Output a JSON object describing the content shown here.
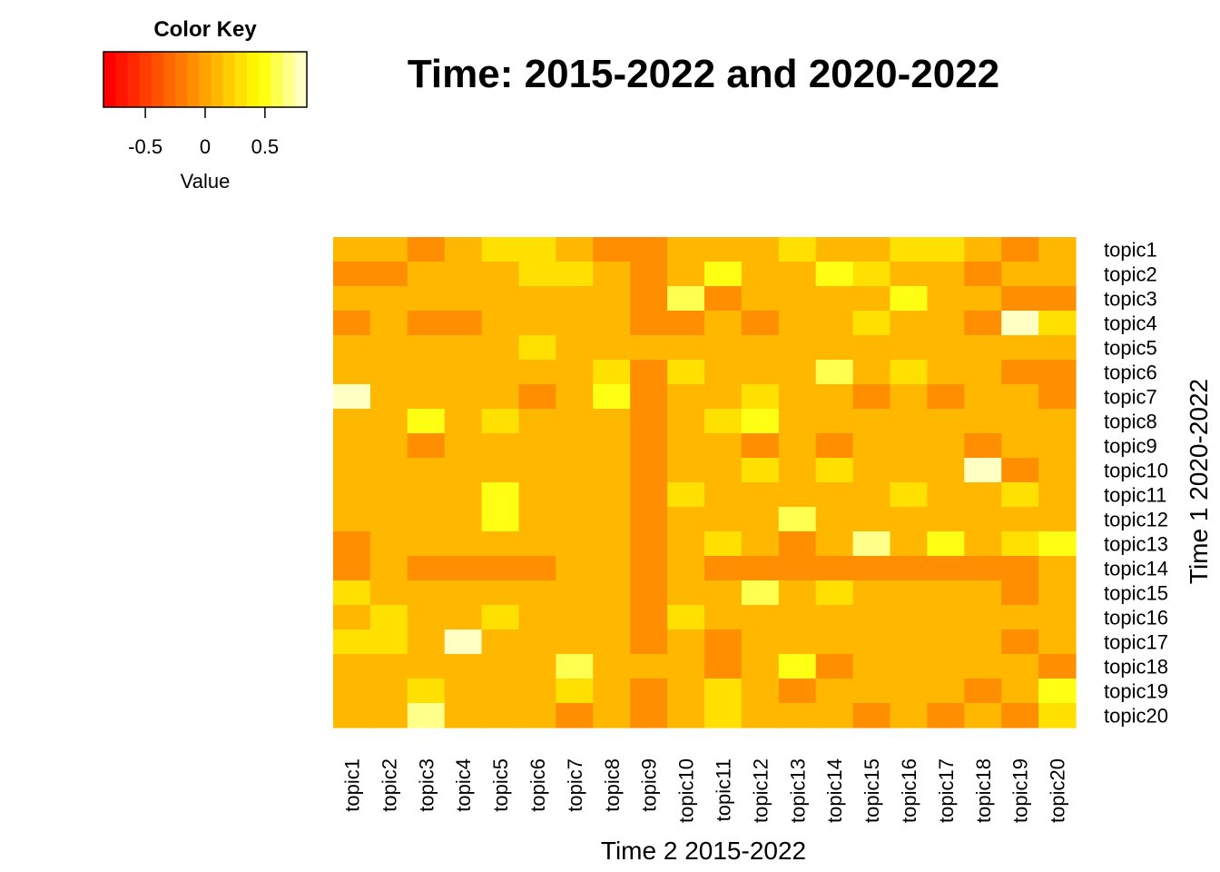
{
  "chart_data": {
    "type": "heatmap",
    "title": "Time: 2015-2022 and 2020-2022",
    "xlabel": "Time 2 2015-2022",
    "ylabel": "Time 1 2020-2022",
    "x_categories": [
      "topic1",
      "topic2",
      "topic3",
      "topic4",
      "topic5",
      "topic6",
      "topic7",
      "topic8",
      "topic9",
      "topic10",
      "topic11",
      "topic12",
      "topic13",
      "topic14",
      "topic15",
      "topic16",
      "topic17",
      "topic18",
      "topic19",
      "topic20"
    ],
    "y_categories": [
      "topic1",
      "topic2",
      "topic3",
      "topic4",
      "topic5",
      "topic6",
      "topic7",
      "topic8",
      "topic9",
      "topic10",
      "topic11",
      "topic12",
      "topic13",
      "topic14",
      "topic15",
      "topic16",
      "topic17",
      "topic18",
      "topic19",
      "topic20"
    ],
    "values": [
      [
        0.1,
        0.1,
        -0.1,
        0.1,
        0.25,
        0.25,
        0.1,
        -0.1,
        -0.1,
        0.1,
        0.1,
        0.1,
        0.25,
        0.1,
        0.1,
        0.3,
        0.3,
        0.1,
        -0.1,
        0.1
      ],
      [
        -0.1,
        -0.1,
        0.1,
        0.1,
        0.1,
        0.25,
        0.25,
        0.1,
        -0.1,
        0.1,
        0.45,
        0.1,
        0.1,
        0.45,
        0.25,
        0.1,
        0.1,
        -0.1,
        0.1,
        0.1
      ],
      [
        0.1,
        0.1,
        0.1,
        0.1,
        0.1,
        0.1,
        0.1,
        0.1,
        -0.1,
        0.6,
        -0.1,
        0.1,
        0.1,
        0.1,
        0.1,
        0.45,
        0.1,
        0.1,
        -0.1,
        -0.1
      ],
      [
        -0.1,
        0.1,
        -0.1,
        -0.1,
        0.1,
        0.1,
        0.1,
        0.1,
        -0.1,
        -0.1,
        0.1,
        -0.1,
        0.1,
        0.1,
        0.25,
        0.1,
        0.1,
        -0.1,
        0.85,
        0.25
      ],
      [
        0.1,
        0.1,
        0.1,
        0.1,
        0.1,
        0.25,
        0.1,
        0.1,
        0.1,
        0.1,
        0.1,
        0.1,
        0.1,
        0.1,
        0.1,
        0.1,
        0.1,
        0.1,
        0.1,
        0.1
      ],
      [
        0.1,
        0.1,
        0.1,
        0.1,
        0.1,
        0.1,
        0.1,
        0.25,
        -0.1,
        0.25,
        0.1,
        0.1,
        0.1,
        0.55,
        0.1,
        0.25,
        0.1,
        0.1,
        -0.1,
        -0.1
      ],
      [
        0.85,
        0.1,
        0.1,
        0.1,
        0.1,
        -0.1,
        0.1,
        0.45,
        -0.1,
        0.1,
        0.1,
        0.25,
        0.1,
        0.1,
        -0.1,
        0.1,
        -0.1,
        0.1,
        0.1,
        -0.1
      ],
      [
        0.1,
        0.1,
        0.45,
        0.1,
        0.25,
        0.1,
        0.1,
        0.1,
        -0.1,
        0.1,
        0.25,
        0.45,
        0.1,
        0.1,
        0.1,
        0.1,
        0.1,
        0.1,
        0.1,
        0.1
      ],
      [
        0.1,
        0.1,
        -0.1,
        0.1,
        0.1,
        0.1,
        0.1,
        0.1,
        -0.1,
        0.1,
        0.1,
        -0.1,
        0.1,
        -0.1,
        0.1,
        0.1,
        0.1,
        -0.1,
        0.1,
        0.1
      ],
      [
        0.1,
        0.1,
        0.1,
        0.1,
        0.1,
        0.1,
        0.1,
        0.1,
        -0.1,
        0.1,
        0.1,
        0.25,
        0.1,
        0.25,
        0.1,
        0.1,
        0.1,
        0.85,
        -0.1,
        0.1
      ],
      [
        0.1,
        0.1,
        0.1,
        0.1,
        0.45,
        0.1,
        0.1,
        0.1,
        -0.1,
        0.25,
        0.1,
        0.1,
        0.1,
        0.1,
        0.1,
        0.25,
        0.1,
        0.1,
        0.25,
        0.1
      ],
      [
        0.1,
        0.1,
        0.1,
        0.1,
        0.45,
        0.1,
        0.1,
        0.1,
        -0.1,
        0.1,
        0.1,
        0.1,
        0.6,
        0.1,
        0.1,
        0.1,
        0.1,
        0.1,
        0.1,
        0.1
      ],
      [
        -0.1,
        0.1,
        0.1,
        0.1,
        0.1,
        0.1,
        0.1,
        0.1,
        -0.1,
        0.1,
        0.25,
        0.1,
        -0.1,
        0.1,
        0.7,
        0.1,
        0.45,
        0.1,
        0.25,
        0.45
      ],
      [
        -0.1,
        0.1,
        -0.1,
        -0.1,
        -0.1,
        -0.1,
        0.1,
        0.1,
        -0.1,
        0.1,
        -0.1,
        -0.1,
        -0.1,
        -0.1,
        -0.1,
        -0.1,
        -0.1,
        -0.1,
        -0.1,
        0.1
      ],
      [
        0.25,
        0.1,
        0.1,
        0.1,
        0.1,
        0.1,
        0.1,
        0.1,
        -0.1,
        0.1,
        0.1,
        0.6,
        0.1,
        0.25,
        0.1,
        0.1,
        0.1,
        0.1,
        -0.1,
        0.1
      ],
      [
        0.1,
        0.25,
        0.1,
        0.1,
        0.25,
        0.1,
        0.1,
        0.1,
        -0.1,
        0.25,
        0.1,
        0.1,
        0.1,
        0.1,
        0.1,
        0.1,
        0.1,
        0.1,
        0.1,
        0.1
      ],
      [
        0.25,
        0.25,
        0.1,
        0.85,
        0.1,
        0.1,
        0.1,
        0.1,
        -0.1,
        0.1,
        -0.1,
        0.1,
        0.1,
        0.1,
        0.1,
        0.1,
        0.1,
        0.1,
        -0.1,
        0.1
      ],
      [
        0.1,
        0.1,
        0.1,
        0.1,
        0.1,
        0.1,
        0.55,
        0.1,
        0.1,
        0.1,
        -0.1,
        0.1,
        0.45,
        -0.1,
        0.1,
        0.1,
        0.1,
        0.1,
        0.1,
        -0.1
      ],
      [
        0.1,
        0.1,
        0.25,
        0.1,
        0.1,
        0.1,
        0.25,
        0.1,
        -0.1,
        0.1,
        0.25,
        0.1,
        -0.1,
        0.1,
        0.1,
        0.1,
        0.1,
        -0.1,
        0.1,
        0.45
      ],
      [
        0.1,
        0.1,
        0.7,
        0.1,
        0.1,
        0.1,
        -0.1,
        0.1,
        -0.1,
        0.1,
        0.25,
        0.1,
        0.1,
        0.1,
        -0.1,
        0.1,
        -0.1,
        0.1,
        -0.1,
        0.25
      ]
    ],
    "color_key": {
      "title": "Color Key",
      "label": "Value",
      "range": [
        -0.85,
        0.85
      ],
      "ticks": [
        "-0.5",
        "0",
        "0.5"
      ],
      "tick_values": [
        -0.5,
        0,
        0.5
      ],
      "colors": [
        "#FF0000",
        "#FF1400",
        "#FF2800",
        "#FF3D00",
        "#FF5100",
        "#FF6600",
        "#FF7A00",
        "#FF8E00",
        "#FFA300",
        "#FFB700",
        "#FFCC00",
        "#FFE000",
        "#FFF400",
        "#FFFF14",
        "#FFFF4F",
        "#FFFF8A",
        "#FFFFC4"
      ]
    }
  }
}
